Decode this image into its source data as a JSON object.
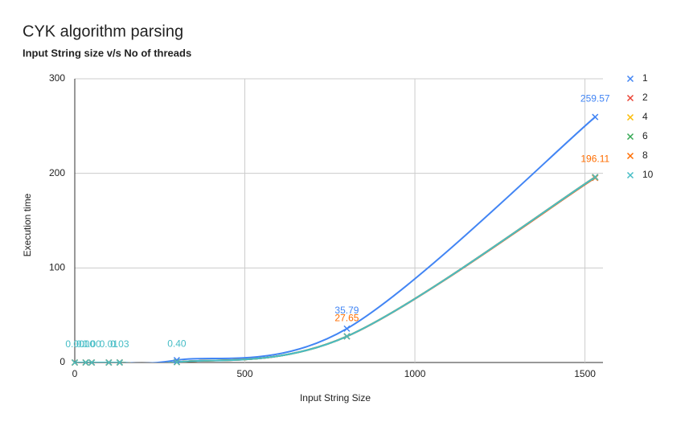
{
  "chart_data": {
    "type": "scatter",
    "title": "CYK algorithm parsing",
    "subtitle": "Input String size v/s No of threads",
    "x_label": "Input String Size",
    "y_label": "Execution time",
    "x": [
      0,
      32,
      50,
      100,
      132,
      300,
      800,
      1530
    ],
    "series": [
      {
        "name": "1",
        "color": "#4285f4",
        "values": [
          0,
          0,
          0,
          0.01,
          0.03,
          2.5,
          35.79,
          259.57
        ],
        "value_labels": [
          null,
          null,
          null,
          null,
          null,
          null,
          "35.79",
          "259.57"
        ]
      },
      {
        "name": "2",
        "color": "#ea4335",
        "values": [
          0,
          0,
          0,
          0.01,
          0.03,
          0.4,
          27.5,
          195.2
        ]
      },
      {
        "name": "4",
        "color": "#fbbc04",
        "values": [
          0,
          0,
          0,
          0.01,
          0.03,
          0.4,
          27.6,
          195.6
        ]
      },
      {
        "name": "6",
        "color": "#34a853",
        "values": [
          0,
          0,
          0,
          0.01,
          0.03,
          0.4,
          27.7,
          196.0
        ]
      },
      {
        "name": "8",
        "color": "#ff6d01",
        "values": [
          0,
          0,
          0,
          0.01,
          0.03,
          0.4,
          27.65,
          196.11
        ],
        "value_labels": [
          null,
          null,
          null,
          null,
          null,
          null,
          "27.65",
          "196.11"
        ]
      },
      {
        "name": "10",
        "color": "#46bdc6",
        "values": [
          0,
          0,
          0,
          0.01,
          0.03,
          0.4,
          27.6,
          196.0
        ],
        "value_labels": [
          "0.00",
          "0.00",
          "0.00",
          "0.01",
          "0.03",
          "0.40",
          null,
          null
        ]
      }
    ],
    "xlim": [
      0,
      1553
    ],
    "xticks": [
      0,
      500,
      1000,
      1500
    ],
    "ylim": [
      0,
      300
    ],
    "yticks": [
      0,
      100,
      200,
      300
    ],
    "grid": true,
    "legend": "right",
    "smooth": true
  }
}
